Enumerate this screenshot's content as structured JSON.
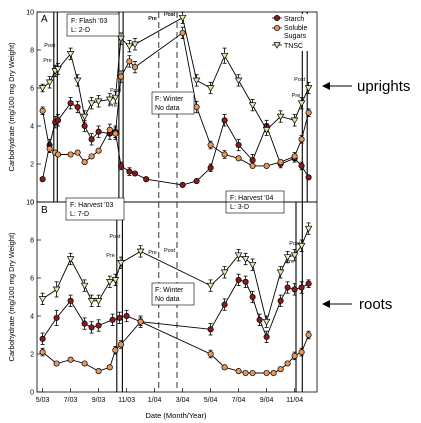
{
  "chart_data": [
    {
      "panel": "A",
      "type": "line",
      "panel_label": "A",
      "side_label": "uprights",
      "ylabel": "Carbohydrate (mg/100 mg Dry Weight)",
      "ylim": [
        0,
        10
      ],
      "yticks": [
        0,
        2,
        4,
        6,
        8,
        10
      ],
      "x_month_index_range": [
        -0.4,
        19.6
      ],
      "grid": false,
      "legend": {
        "placement": "top-right",
        "entries": [
          "Starch",
          "Soluble Sugars",
          "TNSC"
        ]
      },
      "annotation_boxes": [
        {
          "lines": [
            "F: Flash '03",
            "L: 2-D"
          ]
        },
        {
          "lines": [
            "F: Winter",
            "No data"
          ]
        },
        {
          "lines": [
            "F: Harvest '04",
            "L: 3-D"
          ]
        }
      ],
      "event_labels": [
        "Pre",
        "Post",
        "Pre",
        "Post",
        "Pre",
        "Post",
        "Pre",
        "Post"
      ],
      "series": [
        {
          "name": "Starch",
          "color": "#8b1a1a",
          "marker": "circle",
          "x": [
            0,
            0.5,
            0.9,
            1.1,
            2,
            2.5,
            3,
            3.5,
            4,
            4.8,
            5.2,
            5.6,
            6.2,
            6.6,
            7.4,
            10,
            11,
            12,
            13,
            14,
            15,
            16,
            17,
            18,
            18.5,
            19
          ],
          "y": [
            1.2,
            3.0,
            4.2,
            4.3,
            5.2,
            5.0,
            4.0,
            3.3,
            3.7,
            3.6,
            3.7,
            1.9,
            1.6,
            1.5,
            1.2,
            0.9,
            1.1,
            1.8,
            4.3,
            3.0,
            2.2,
            4.0,
            2.0,
            2.3,
            1.9,
            1.3
          ],
          "err": [
            0.1,
            0.3,
            0.3,
            0.3,
            0.3,
            0.3,
            0.3,
            0.3,
            0.3,
            0.3,
            0.3,
            0.2,
            0.2,
            0.1,
            0.1,
            0.1,
            0.1,
            0.2,
            0.3,
            0.3,
            0.3,
            0.3,
            0.2,
            0.2,
            0.2,
            0.1
          ]
        },
        {
          "name": "Soluble Sugars",
          "color": "#e8975a",
          "marker": "circle",
          "x": [
            0,
            0.5,
            0.9,
            1.1,
            2,
            2.5,
            3,
            3.5,
            4,
            4.8,
            5.2,
            5.6,
            6.2,
            6.6,
            10,
            11,
            12,
            13,
            14,
            15,
            16,
            17,
            18,
            18.5,
            19
          ],
          "y": [
            4.8,
            2.8,
            2.6,
            2.5,
            2.5,
            2.6,
            2.1,
            2.4,
            2.7,
            3.8,
            3.6,
            6.6,
            7.4,
            7.1,
            8.9,
            5.0,
            3.0,
            2.5,
            2.3,
            1.9,
            1.9,
            2.1,
            2.4,
            3.3,
            4.7
          ],
          "err": [
            0.2,
            0.2,
            0.1,
            0.1,
            0.1,
            0.1,
            0.1,
            0.1,
            0.1,
            0.3,
            0.3,
            0.3,
            0.3,
            0.3,
            0.3,
            0.3,
            0.2,
            0.2,
            0.1,
            0.1,
            0.1,
            0.1,
            0.2,
            0.2,
            0.2
          ]
        },
        {
          "name": "TNSC",
          "color": "#e7e8b0",
          "marker": "triangle-down",
          "x": [
            0,
            0.5,
            0.9,
            1.1,
            2,
            2.5,
            3,
            3.5,
            4,
            4.8,
            5.2,
            5.6,
            6.2,
            6.6,
            10,
            11,
            12,
            13,
            14,
            15,
            16,
            17,
            18,
            18.5,
            19
          ],
          "y": [
            6.0,
            6.3,
            6.9,
            7.0,
            7.8,
            6.4,
            4.5,
            5.2,
            5.3,
            5.4,
            5.5,
            8.6,
            8.2,
            8.3,
            9.7,
            6.4,
            6.0,
            7.7,
            6.4,
            5.1,
            3.8,
            4.5,
            4.3,
            5.2,
            6.0
          ],
          "err": [
            0.2,
            0.3,
            0.3,
            0.3,
            0.3,
            0.3,
            0.3,
            0.3,
            0.3,
            0.3,
            0.3,
            0.3,
            0.3,
            0.3,
            0.3,
            0.3,
            0.3,
            0.4,
            0.3,
            0.3,
            0.3,
            0.3,
            0.3,
            0.3,
            0.3
          ]
        }
      ]
    },
    {
      "panel": "B",
      "type": "line",
      "panel_label": "B",
      "side_label": "roots",
      "ylabel": "Carbohydrate (mg/100 mg Dry Weight)",
      "xlabel": "Date (Month/Year)",
      "ylim": [
        0,
        10
      ],
      "yticks": [
        0,
        2,
        4,
        6,
        8,
        10
      ],
      "xticks": [
        "5/03",
        "7/03",
        "9/03",
        "11/03",
        "1/04",
        "3/04",
        "5/04",
        "7/04",
        "9/04",
        "11/04"
      ],
      "xtick_month_index": [
        0,
        2,
        4,
        6,
        8,
        10,
        12,
        14,
        16,
        18
      ],
      "x_month_index_range": [
        -0.4,
        19.6
      ],
      "grid": false,
      "annotation_boxes": [
        {
          "lines": [
            "F: Harvest '03",
            "L: 7-D"
          ]
        },
        {
          "lines": [
            "F: Winter",
            "No data"
          ]
        }
      ],
      "event_labels": [
        "Pre",
        "Post",
        "Pre",
        "Post",
        "Pre",
        "Post"
      ],
      "series": [
        {
          "name": "Starch",
          "color": "#8b1a1a",
          "marker": "circle",
          "x": [
            0,
            1,
            2,
            3,
            3.5,
            4,
            5,
            5.5,
            6,
            7,
            12,
            13,
            14,
            14.5,
            15,
            15.5,
            16,
            17,
            17.5,
            18,
            18.5,
            19
          ],
          "y": [
            2.8,
            3.9,
            4.8,
            3.6,
            3.4,
            3.5,
            3.8,
            3.9,
            4.0,
            3.7,
            3.3,
            4.6,
            5.9,
            5.8,
            5.0,
            3.8,
            2.9,
            4.8,
            5.5,
            5.4,
            5.5,
            5.7
          ],
          "err": [
            0.3,
            0.4,
            0.3,
            0.3,
            0.3,
            0.3,
            0.3,
            0.3,
            0.3,
            0.3,
            0.3,
            0.3,
            0.3,
            0.3,
            0.3,
            0.3,
            0.3,
            0.3,
            0.3,
            0.3,
            0.3,
            0.2
          ]
        },
        {
          "name": "Soluble Sugars",
          "color": "#e8975a",
          "marker": "circle",
          "x": [
            0,
            1,
            2,
            3,
            4,
            4.8,
            5.2,
            5.6,
            7,
            12,
            13,
            14,
            14.5,
            15,
            16,
            16.5,
            17,
            17.5,
            18,
            18.5,
            19
          ],
          "y": [
            2.1,
            1.5,
            1.7,
            1.5,
            1.1,
            1.3,
            2.2,
            2.5,
            3.7,
            2.0,
            1.3,
            1.1,
            1.0,
            1.0,
            1.0,
            1.0,
            1.2,
            1.5,
            1.9,
            2.1,
            3.0
          ],
          "err": [
            0.2,
            0.1,
            0.1,
            0.1,
            0.1,
            0.1,
            0.2,
            0.2,
            0.2,
            0.2,
            0.1,
            0.1,
            0.1,
            0.1,
            0.1,
            0.1,
            0.1,
            0.1,
            0.2,
            0.2,
            0.2
          ]
        },
        {
          "name": "TNSC",
          "color": "#e7e8b0",
          "marker": "triangle-down",
          "x": [
            0,
            1,
            2,
            3,
            3.5,
            4,
            4.8,
            5.2,
            5.6,
            7,
            12,
            13,
            14,
            14.5,
            15,
            16,
            17,
            17.5,
            18,
            18.5,
            19
          ],
          "y": [
            4.9,
            5.4,
            7.0,
            5.6,
            4.8,
            4.8,
            5.8,
            5.9,
            6.8,
            7.4,
            5.6,
            6.3,
            7.2,
            7.0,
            6.7,
            3.7,
            6.3,
            7.1,
            7.2,
            7.7,
            8.6
          ],
          "err": [
            0.3,
            0.4,
            0.3,
            0.3,
            0.3,
            0.3,
            0.3,
            0.3,
            0.3,
            0.3,
            0.3,
            0.3,
            0.3,
            0.3,
            0.3,
            0.3,
            0.3,
            0.3,
            0.3,
            0.3,
            0.3
          ]
        }
      ]
    }
  ]
}
